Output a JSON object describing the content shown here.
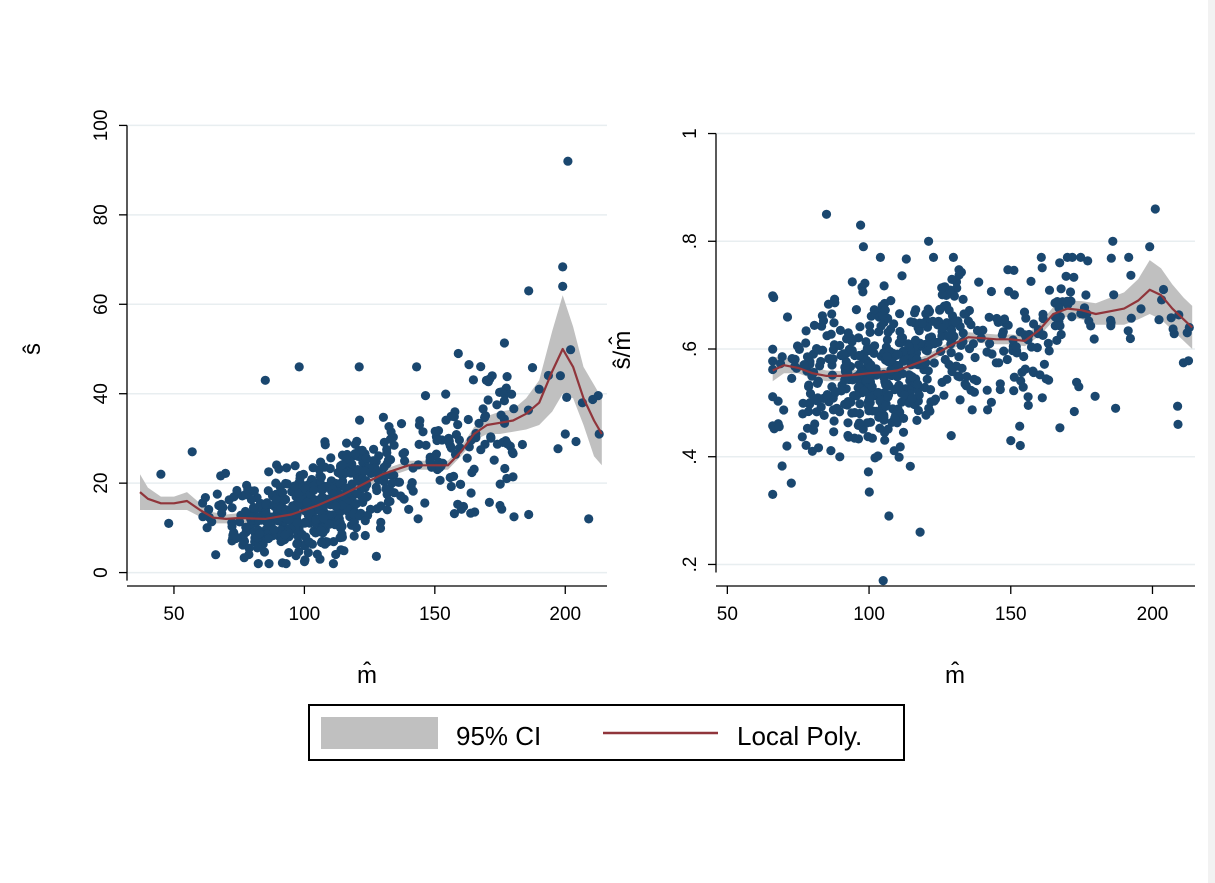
{
  "colors": {
    "points": "#1a476f",
    "line": "#90353b",
    "ci_band": "#c0c0c0",
    "grid": "#e8eef0",
    "axis": "#000000"
  },
  "legend": {
    "ci_label": "95% CI",
    "line_label": "Local Poly."
  },
  "chart_data": [
    {
      "type": "scatter",
      "xlabel": "m̂",
      "ylabel": "ŝ",
      "xlim": [
        32,
        216
      ],
      "ylim": [
        -3,
        103
      ],
      "xticks": [
        50,
        100,
        150,
        200
      ],
      "xtick_labels": [
        "50",
        "100",
        "150",
        "200"
      ],
      "yticks": [
        0,
        20,
        40,
        60,
        80,
        100
      ],
      "ytick_labels": [
        "0",
        "20",
        "40",
        "60",
        "80",
        "100"
      ],
      "grid": true,
      "scatter_seed": 11,
      "outliers": [
        [
          201,
          92
        ],
        [
          199,
          64
        ],
        [
          186,
          63
        ],
        [
          85,
          43
        ],
        [
          98,
          46
        ],
        [
          121,
          46
        ],
        [
          143,
          46
        ],
        [
          159,
          49
        ],
        [
          57,
          27
        ],
        [
          45,
          22
        ],
        [
          48,
          11
        ],
        [
          66,
          4
        ],
        [
          186,
          13
        ],
        [
          209,
          12
        ],
        [
          200,
          31
        ],
        [
          213,
          31
        ],
        [
          175,
          15
        ],
        [
          106,
          3
        ],
        [
          172,
          44
        ],
        [
          190,
          41
        ]
      ],
      "fit_x": [
        37,
        40,
        45,
        50,
        55,
        60,
        65,
        70,
        75,
        80,
        85,
        90,
        95,
        100,
        105,
        110,
        115,
        120,
        125,
        130,
        135,
        140,
        145,
        150,
        155,
        160,
        165,
        170,
        175,
        180,
        185,
        190,
        195,
        199,
        203,
        207,
        211,
        214
      ],
      "fit_y": [
        18,
        16.5,
        15.5,
        15.5,
        16,
        14,
        12.3,
        12,
        12.2,
        12.1,
        12,
        12.5,
        13,
        14,
        15,
        16.3,
        17.5,
        19,
        20.5,
        22,
        23,
        24,
        24,
        24,
        24,
        27,
        31,
        33,
        33.5,
        34,
        35.5,
        38,
        45,
        50,
        46,
        39,
        34,
        31
      ],
      "ci_low": [
        14,
        14,
        14,
        14,
        14,
        12.5,
        11,
        11,
        11,
        11,
        11,
        11.5,
        12,
        13,
        14,
        15.5,
        16.5,
        18,
        19.5,
        21,
        22,
        23,
        23,
        23,
        23,
        26,
        29.5,
        31,
        31,
        31.5,
        32,
        33,
        36,
        40,
        39,
        33,
        26,
        24
      ],
      "ci_high": [
        22,
        19,
        17,
        17,
        18,
        15.5,
        13.5,
        13,
        13.3,
        13.2,
        13,
        13.5,
        14,
        15,
        16,
        17.2,
        18.5,
        20,
        21.5,
        23,
        24,
        25,
        25,
        25,
        25,
        28,
        32.5,
        35,
        36,
        36.5,
        39,
        43,
        54,
        62,
        55,
        46,
        42,
        39
      ]
    },
    {
      "type": "scatter",
      "xlabel": "m̂",
      "ylabel": "ŝ/m̂",
      "xlim": [
        46,
        215
      ],
      "ylim": [
        0.16,
        1.04
      ],
      "xticks": [
        50,
        100,
        150,
        200
      ],
      "xtick_labels": [
        "50",
        "100",
        "150",
        "200"
      ],
      "yticks": [
        0.2,
        0.4,
        0.6,
        0.8,
        1.0
      ],
      "ytick_labels": [
        ".2",
        ".4",
        ".6",
        ".8",
        "1"
      ],
      "grid": true,
      "scatter_seed": 29,
      "outliers": [
        [
          85,
          0.85
        ],
        [
          97,
          0.83
        ],
        [
          98,
          0.79
        ],
        [
          104,
          0.77
        ],
        [
          121,
          0.8
        ],
        [
          201,
          0.86
        ],
        [
          199,
          0.79
        ],
        [
          186,
          0.8
        ],
        [
          105,
          0.17
        ],
        [
          118,
          0.26
        ],
        [
          107,
          0.29
        ],
        [
          66,
          0.33
        ],
        [
          209,
          0.46
        ],
        [
          187,
          0.49
        ],
        [
          174,
          0.53
        ],
        [
          213,
          0.64
        ],
        [
          71,
          0.42
        ],
        [
          80,
          0.41
        ],
        [
          150,
          0.43
        ]
      ],
      "fit_x": [
        66,
        70,
        75,
        80,
        85,
        90,
        95,
        100,
        105,
        110,
        115,
        120,
        125,
        130,
        135,
        140,
        145,
        150,
        155,
        160,
        165,
        170,
        175,
        180,
        185,
        190,
        195,
        199,
        203,
        207,
        211,
        214
      ],
      "fit_y": [
        0.56,
        0.57,
        0.565,
        0.555,
        0.55,
        0.55,
        0.552,
        0.555,
        0.557,
        0.56,
        0.57,
        0.58,
        0.595,
        0.61,
        0.622,
        0.62,
        0.618,
        0.618,
        0.615,
        0.635,
        0.665,
        0.675,
        0.672,
        0.665,
        0.67,
        0.675,
        0.69,
        0.71,
        0.7,
        0.675,
        0.655,
        0.64
      ],
      "ci_low": [
        0.54,
        0.555,
        0.555,
        0.545,
        0.54,
        0.541,
        0.543,
        0.546,
        0.549,
        0.552,
        0.562,
        0.572,
        0.587,
        0.602,
        0.613,
        0.611,
        0.609,
        0.609,
        0.605,
        0.624,
        0.652,
        0.66,
        0.655,
        0.645,
        0.645,
        0.645,
        0.655,
        0.665,
        0.655,
        0.635,
        0.615,
        0.6
      ],
      "ci_high": [
        0.585,
        0.585,
        0.578,
        0.566,
        0.56,
        0.559,
        0.561,
        0.564,
        0.565,
        0.568,
        0.578,
        0.588,
        0.603,
        0.618,
        0.631,
        0.629,
        0.627,
        0.627,
        0.625,
        0.646,
        0.678,
        0.69,
        0.689,
        0.685,
        0.695,
        0.705,
        0.73,
        0.765,
        0.75,
        0.72,
        0.695,
        0.68
      ]
    }
  ]
}
